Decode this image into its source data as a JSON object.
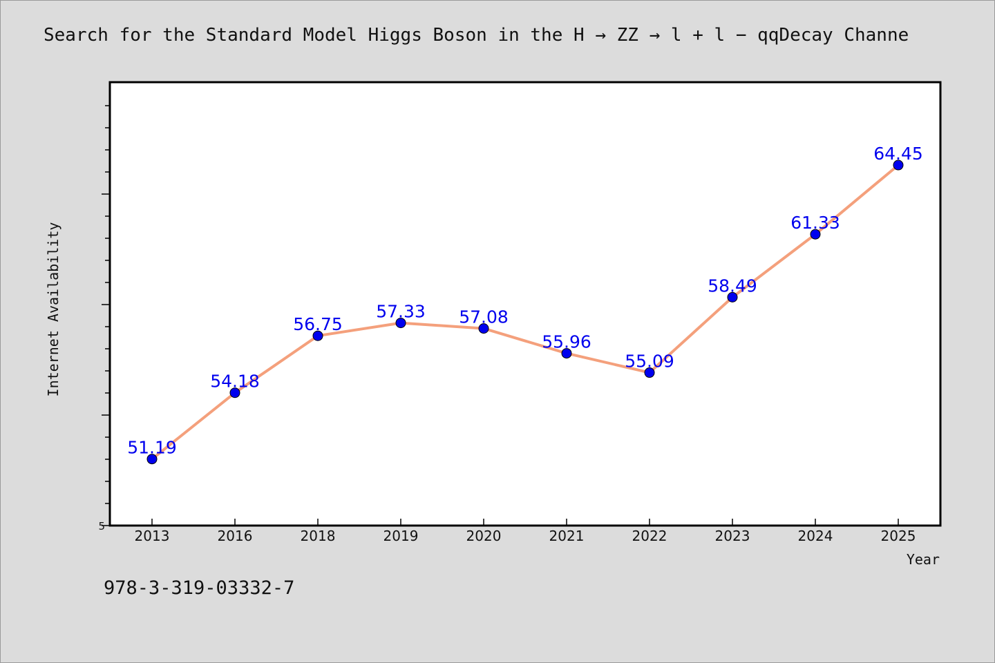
{
  "title": "Search for the Standard Model Higgs Boson in the H → ZZ → l + l − qqDecay Channe",
  "footer_text": "978-3-319-03332-7",
  "colors": {
    "background": "#dcdcdc",
    "plot_background": "#ffffff",
    "line": "#f4a07c",
    "marker": "#0000ee",
    "data_label": "#0000ee"
  },
  "chart_data": {
    "type": "line",
    "categories": [
      "2013",
      "2016",
      "2018",
      "2019",
      "2020",
      "2021",
      "2022",
      "2023",
      "2024",
      "2025"
    ],
    "series": [
      {
        "values": [
          51.19,
          54.18,
          56.75,
          57.33,
          57.08,
          55.96,
          55.09,
          58.49,
          61.33,
          64.45
        ],
        "data_labels": [
          "51.19",
          "54.18",
          "56.75",
          "57.33",
          "57.08",
          "55.96",
          "55.09",
          "58.49",
          "61.33",
          "64.45"
        ]
      }
    ],
    "xlabel": "Year",
    "ylabel": "Internet Availability",
    "y_tick_label": "5",
    "ylim": [
      48.19,
      68.19
    ],
    "grid": false,
    "legend": "none"
  }
}
